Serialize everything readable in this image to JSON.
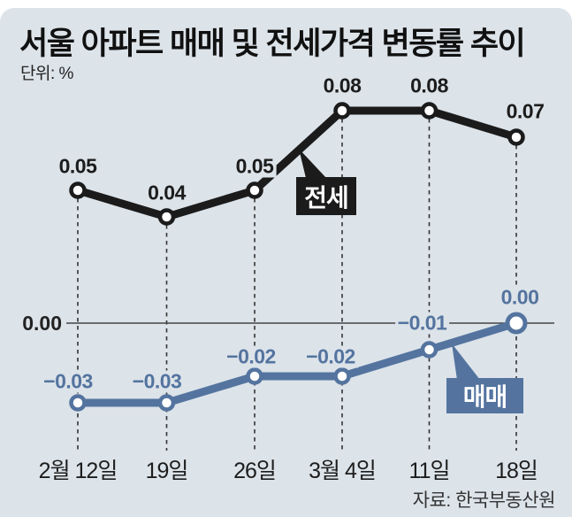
{
  "header": {
    "title": "서울 아파트 매매 및 전세가격 변동률 추이",
    "unit_label": "단위: %"
  },
  "footer": {
    "source": "자료: 한국부동산원"
  },
  "colors": {
    "card_background": "#dce3e9",
    "jeonse_line": "#1b1b1b",
    "maemae_line": "#54749f",
    "grid_dash": "#333333",
    "baseline": "#444444",
    "title_text": "#111111",
    "subtitle_text": "#222222",
    "date_text": "#1d1d1d",
    "source_text": "#333333",
    "marker_fill": "#ffffff"
  },
  "chart_data": {
    "type": "line",
    "title": "서울 아파트 매매 및 전세가격 변동률 추이",
    "unit": "%",
    "categories": [
      "2월 12일",
      "19일",
      "26일",
      "3월 4일",
      "11일",
      "18일"
    ],
    "series": [
      {
        "name": "전세",
        "color": "#1b1b1b",
        "label_color": "#1c1c1c",
        "values": [
          0.05,
          0.04,
          0.05,
          0.08,
          0.08,
          0.07
        ],
        "labels": [
          "0.05",
          "0.04",
          "0.05",
          "0.08",
          "0.08",
          "0.07"
        ]
      },
      {
        "name": "매매",
        "color": "#54749f",
        "label_color": "#54749f",
        "values": [
          -0.03,
          -0.03,
          -0.02,
          -0.02,
          -0.01,
          0.0
        ],
        "labels": [
          "−0.03",
          "−0.03",
          "−0.02",
          "−0.02",
          "−0.01",
          "0.00"
        ]
      }
    ],
    "baseline": {
      "value": 0,
      "label": "0.00"
    },
    "ylim": [
      -0.04,
      0.09
    ],
    "grid": "dashed-vertical",
    "legend_position": "callout-boxes-on-lines",
    "source": "자료: 한국부동산원"
  }
}
